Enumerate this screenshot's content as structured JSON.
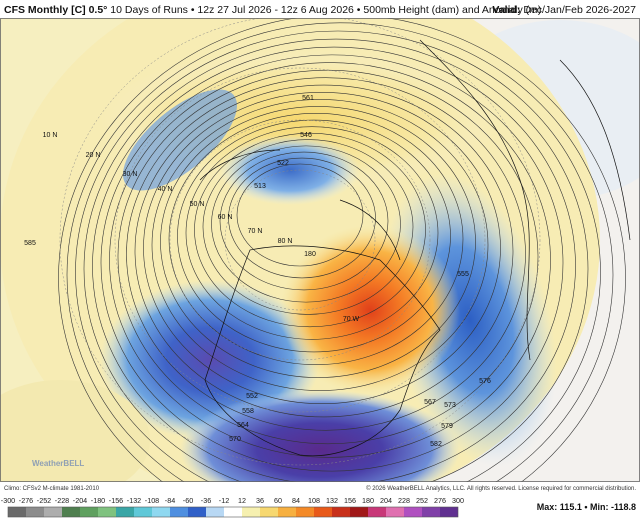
{
  "header": {
    "model": "CFS Monthly [C] 0.5°",
    "description": "10 Days of Runs • 12z 27 Jul 2026 - 12z 6 Aug 2026 • 500mb Height (dam) and Anomaly (m)",
    "valid_label": "Valid:",
    "valid": "Dec/Jan/Feb 2026-2027"
  },
  "map": {
    "labels": [
      "10 N",
      "20 N",
      "30 N",
      "40 N",
      "50 N",
      "60 N",
      "70 N",
      "80 N",
      "180",
      "70 W",
      "561",
      "546",
      "522",
      "513",
      "585",
      "555",
      "576",
      "573",
      "567",
      "579",
      "582",
      "552",
      "558",
      "564",
      "570"
    ],
    "logo": "WeatherBELL"
  },
  "footer": {
    "climo": "Climo: CFSv2 M-climate 1981-2010",
    "copyright": "© 2026 WeatherBELL Analytics, LLC. All rights reserved. License required for commercial distribution.",
    "stats": "Max: 115.1 • Min: -118.8"
  },
  "colorbar": {
    "ticks": [
      -300,
      -276,
      -252,
      -228,
      -204,
      -180,
      -156,
      -132,
      -108,
      -84,
      -60,
      -36,
      -12,
      12,
      36,
      60,
      84,
      108,
      132,
      156,
      180,
      204,
      228,
      252,
      276,
      300
    ]
  }
}
